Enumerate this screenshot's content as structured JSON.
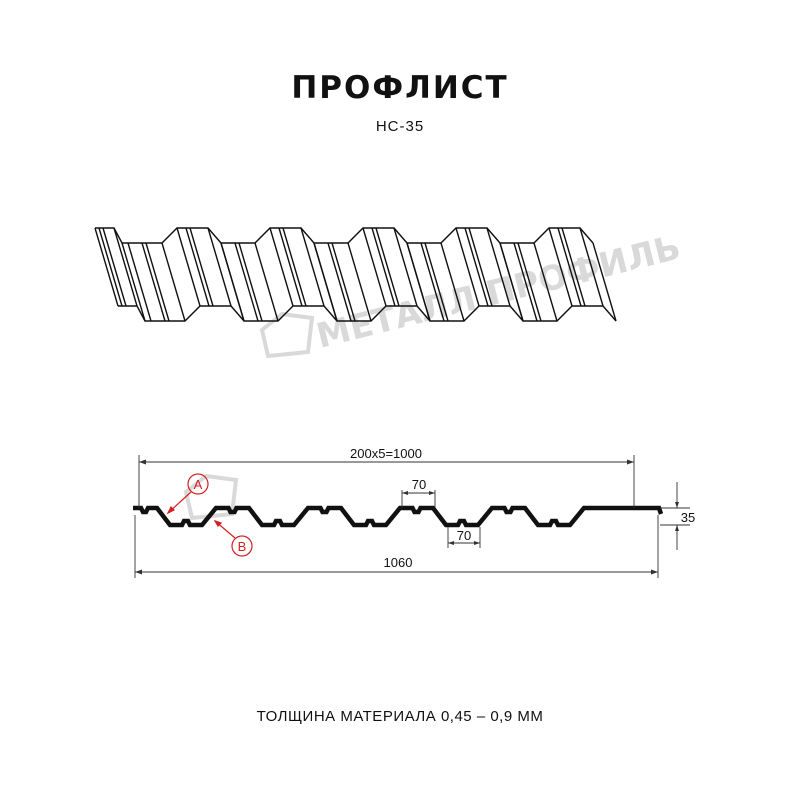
{
  "title": "ПРОФЛИСТ",
  "model": "НС-35",
  "thickness_note": "ТОЛЩИНА МАТЕРИАЛА 0,45 – 0,9 ММ",
  "watermark": "МЕТАЛЛ ПРОФИЛЬ",
  "dimensions": {
    "useful_width": "200x5=1000",
    "total_width": "1060",
    "crest_width": "70",
    "trough_width": "70",
    "height": "35"
  },
  "callouts": {
    "a": "A",
    "b": "B"
  },
  "colors": {
    "callout": "#d42020",
    "line": "#111111",
    "watermark": "#d9d9d9"
  }
}
